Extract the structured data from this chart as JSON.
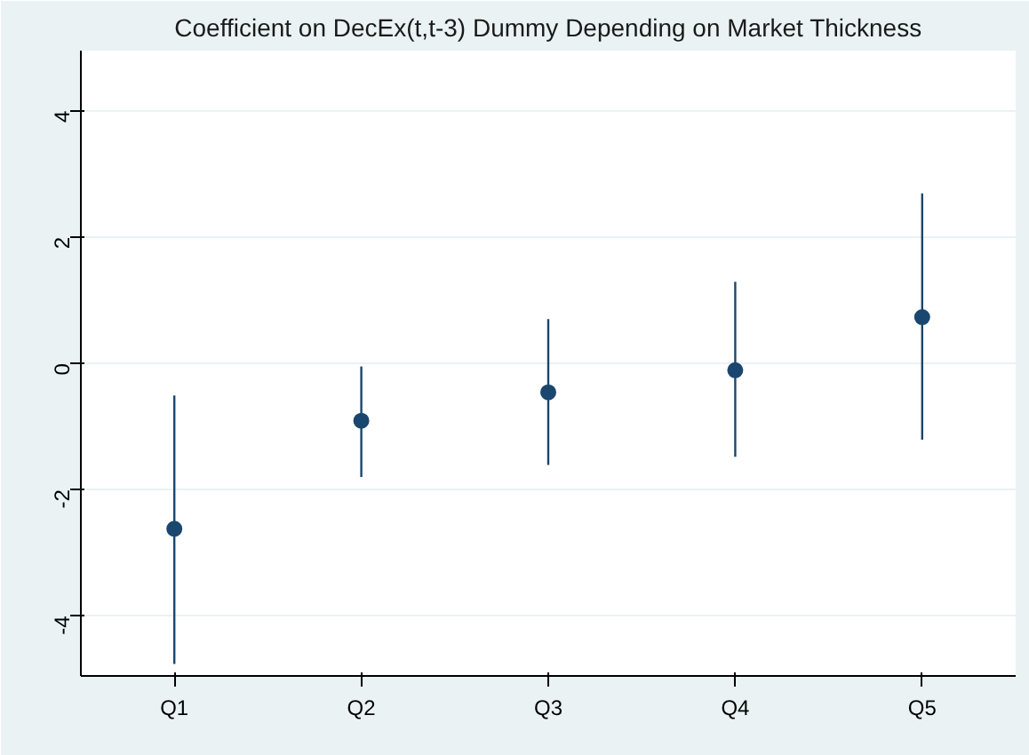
{
  "chart_data": {
    "type": "scatter",
    "title": "Coefficient on DecEx(t,t-3) Dummy Depending on Market Thickness",
    "categories": [
      "Q1",
      "Q2",
      "Q3",
      "Q4",
      "Q5"
    ],
    "series": [
      {
        "color": "#1a476f",
        "values": [
          -2.62,
          -0.91,
          -0.46,
          -0.11,
          0.73
        ],
        "errors": [
          [
            -4.76,
            -0.51
          ],
          [
            -1.8,
            -0.05
          ],
          [
            -1.61,
            0.7
          ],
          [
            -1.48,
            1.29
          ],
          [
            -1.21,
            2.69
          ]
        ]
      }
    ],
    "ylim": [
      -4.95,
      4.95
    ],
    "yticks": [
      -4,
      -2,
      0,
      2,
      4
    ],
    "grid": "y",
    "marker": "circle"
  }
}
